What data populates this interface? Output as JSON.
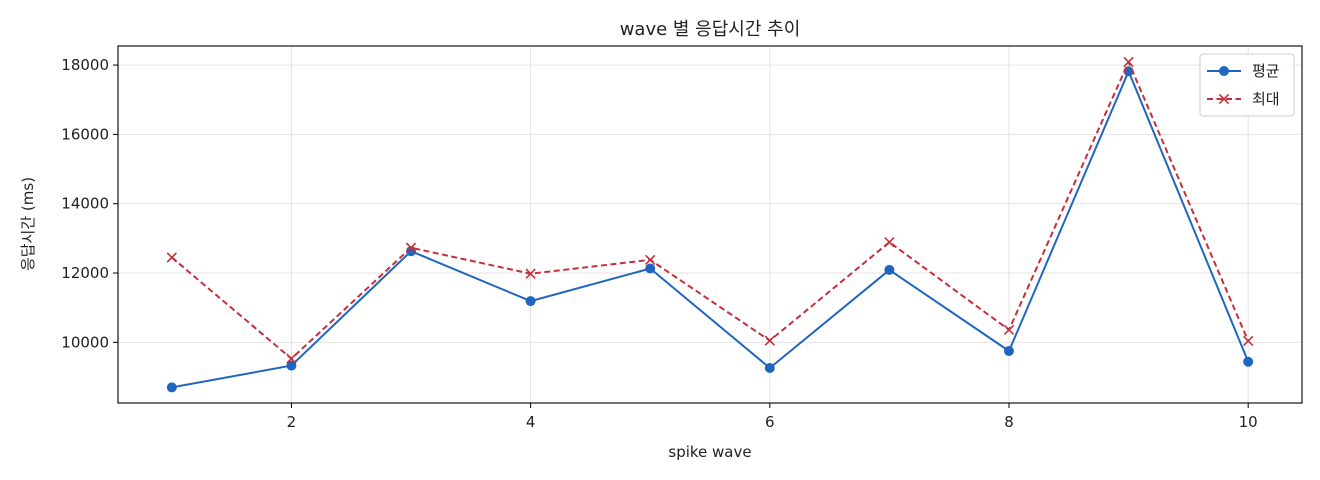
{
  "chart_data": {
    "type": "line",
    "title": "wave 별 응답시간 추이",
    "xlabel": "spike wave",
    "ylabel": "응답시간 (ms)",
    "x": [
      1,
      2,
      3,
      4,
      5,
      6,
      7,
      8,
      9,
      10
    ],
    "xlim": [
      0.55,
      10.45
    ],
    "ylim": [
      8250,
      18550
    ],
    "xticks": [
      2,
      4,
      6,
      8,
      10
    ],
    "yticks": [
      10000,
      12000,
      14000,
      16000,
      18000
    ],
    "grid": true,
    "legend_position": "top-right",
    "series": [
      {
        "name": "평균",
        "values": [
          8700,
          9330,
          12630,
          11190,
          12130,
          9260,
          12090,
          9750,
          17820,
          9440
        ],
        "color": "#1f66c1",
        "line_style": "solid",
        "marker": "circle"
      },
      {
        "name": "최대",
        "values": [
          12450,
          9530,
          12730,
          11980,
          12380,
          10050,
          12890,
          10360,
          18090,
          10040
        ],
        "color": "#c4303a",
        "line_style": "dashed",
        "marker": "x"
      }
    ]
  }
}
